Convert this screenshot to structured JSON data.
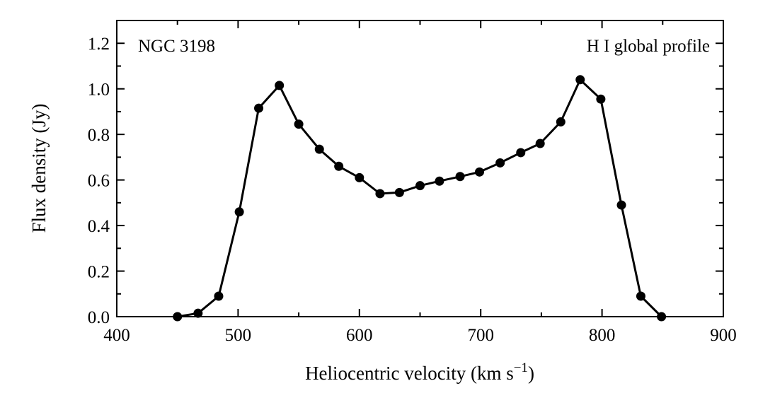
{
  "chart_data": {
    "type": "scatter",
    "title": "",
    "annotations": {
      "left": "NGC 3198",
      "right": "H I global profile"
    },
    "xlabel": "Heliocentric velocity (km s",
    "xlabel_sup": "−1",
    "xlabel_close": ")",
    "ylabel": "Flux density (Jy)",
    "xlim": [
      400,
      900
    ],
    "ylim": [
      0,
      1.3
    ],
    "xticks": [
      400,
      500,
      600,
      700,
      800,
      900
    ],
    "xtick_labels": [
      "400",
      "500",
      "600",
      "700",
      "800",
      "900"
    ],
    "yticks": [
      0,
      0.2,
      0.4,
      0.6,
      0.8,
      1.0,
      1.2
    ],
    "ytick_labels": [
      "0.0",
      "0.2",
      "0.4",
      "0.6",
      "0.8",
      "1.0",
      "1.2"
    ],
    "grid": false,
    "line_color": "#000000",
    "marker_color": "#000000",
    "series": [
      {
        "x": [
          450,
          467,
          484,
          501,
          517,
          534,
          550,
          567,
          583,
          600,
          617,
          633,
          650,
          666,
          683,
          699,
          716,
          733,
          749,
          766,
          782,
          799,
          816,
          832,
          849
        ],
        "values": [
          0.0,
          0.015,
          0.09,
          0.46,
          0.915,
          1.015,
          0.845,
          0.735,
          0.66,
          0.61,
          0.54,
          0.545,
          0.575,
          0.595,
          0.615,
          0.635,
          0.675,
          0.72,
          0.76,
          0.855,
          1.04,
          0.955,
          0.49,
          0.09,
          0.0
        ]
      }
    ]
  }
}
